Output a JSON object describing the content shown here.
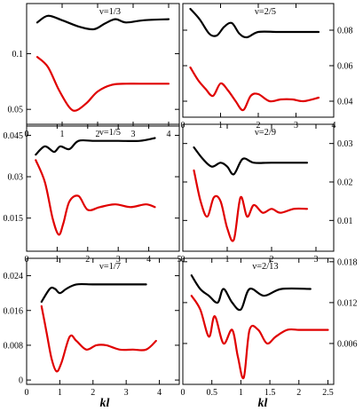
{
  "figure": {
    "xlabel": "kl"
  },
  "colors": {
    "upper": "#000000",
    "lower": "#e00000"
  },
  "chart_data": [
    {
      "type": "line",
      "title": "ν=1/3",
      "xlim": [
        0,
        4.3
      ],
      "ylim": [
        0.035,
        0.145
      ],
      "xticks": [
        0,
        1,
        2,
        3,
        4
      ],
      "yticks": [
        0.05,
        0.1
      ],
      "ytick_labels": [
        "0.05",
        "0.1"
      ],
      "y_axis_side": "left",
      "series": [
        {
          "color": "#000000",
          "x": [
            0.3,
            0.6,
            1.0,
            1.5,
            1.9,
            2.2,
            2.5,
            2.8,
            3.3,
            4.0
          ],
          "y": [
            0.128,
            0.134,
            0.13,
            0.124,
            0.122,
            0.127,
            0.131,
            0.128,
            0.13,
            0.131
          ]
        },
        {
          "color": "#e00000",
          "x": [
            0.3,
            0.6,
            0.9,
            1.2,
            1.4,
            1.7,
            2.0,
            2.4,
            2.8,
            3.2,
            4.0
          ],
          "y": [
            0.097,
            0.088,
            0.068,
            0.052,
            0.049,
            0.056,
            0.066,
            0.072,
            0.073,
            0.073,
            0.073
          ]
        }
      ]
    },
    {
      "type": "line",
      "title": "ν=2/5",
      "xlim": [
        0,
        4
      ],
      "ylim": [
        0.031,
        0.095
      ],
      "xticks": [
        0,
        1,
        2,
        3,
        4
      ],
      "yticks": [
        0.04,
        0.06,
        0.08
      ],
      "ytick_labels": [
        "0.04",
        "0.06",
        "0.08"
      ],
      "y_axis_side": "right",
      "series": [
        {
          "color": "#000000",
          "x": [
            0.2,
            0.45,
            0.7,
            0.9,
            1.1,
            1.3,
            1.5,
            1.7,
            2.0,
            2.5,
            3.0,
            3.6
          ],
          "y": [
            0.092,
            0.086,
            0.078,
            0.077,
            0.082,
            0.084,
            0.078,
            0.076,
            0.079,
            0.079,
            0.079,
            0.079
          ]
        },
        {
          "color": "#e00000",
          "x": [
            0.2,
            0.4,
            0.6,
            0.8,
            1.0,
            1.2,
            1.4,
            1.6,
            1.8,
            2.0,
            2.3,
            2.6,
            2.9,
            3.2,
            3.6
          ],
          "y": [
            0.059,
            0.052,
            0.047,
            0.043,
            0.05,
            0.046,
            0.04,
            0.035,
            0.043,
            0.044,
            0.04,
            0.041,
            0.041,
            0.04,
            0.042
          ]
        }
      ]
    },
    {
      "type": "line",
      "title": "ν=1/5",
      "xlim": [
        0,
        5
      ],
      "ylim": [
        0.003,
        0.049
      ],
      "xticks": [
        0,
        1,
        2,
        3,
        4,
        5
      ],
      "yticks": [
        0.015,
        0.03,
        0.045
      ],
      "ytick_labels": [
        "0.015",
        "0.03",
        "0.045"
      ],
      "y_axis_side": "left",
      "series": [
        {
          "color": "#000000",
          "x": [
            0.3,
            0.6,
            0.9,
            1.1,
            1.4,
            1.7,
            2.2,
            3.0,
            3.7,
            4.2
          ],
          "y": [
            0.038,
            0.041,
            0.039,
            0.041,
            0.04,
            0.043,
            0.043,
            0.043,
            0.043,
            0.044
          ]
        },
        {
          "color": "#e00000",
          "x": [
            0.3,
            0.6,
            0.85,
            1.05,
            1.2,
            1.4,
            1.7,
            2.0,
            2.4,
            2.9,
            3.4,
            3.9,
            4.2
          ],
          "y": [
            0.036,
            0.028,
            0.015,
            0.009,
            0.013,
            0.021,
            0.023,
            0.018,
            0.019,
            0.02,
            0.019,
            0.02,
            0.019
          ]
        }
      ]
    },
    {
      "type": "line",
      "title": "ν=2/9",
      "xlim": [
        0,
        3.4
      ],
      "ylim": [
        0.002,
        0.035
      ],
      "xticks": [
        0,
        1,
        2,
        3
      ],
      "yticks": [
        0.01,
        0.02,
        0.03
      ],
      "ytick_labels": [
        "0.01",
        "0.02",
        "0.03"
      ],
      "y_axis_side": "right",
      "series": [
        {
          "color": "#000000",
          "x": [
            0.25,
            0.45,
            0.65,
            0.85,
            1.0,
            1.15,
            1.35,
            1.6,
            2.0,
            2.8
          ],
          "y": [
            0.029,
            0.026,
            0.024,
            0.025,
            0.024,
            0.022,
            0.026,
            0.025,
            0.025,
            0.025
          ]
        },
        {
          "color": "#e00000",
          "x": [
            0.25,
            0.4,
            0.55,
            0.7,
            0.85,
            1.0,
            1.15,
            1.3,
            1.45,
            1.6,
            1.8,
            2.0,
            2.2,
            2.5,
            2.8
          ],
          "y": [
            0.023,
            0.015,
            0.011,
            0.016,
            0.015,
            0.008,
            0.005,
            0.016,
            0.011,
            0.014,
            0.012,
            0.013,
            0.012,
            0.013,
            0.013
          ]
        }
      ]
    },
    {
      "type": "line",
      "title": "ν=1/7",
      "xlim": [
        0,
        4.6
      ],
      "ylim": [
        -0.001,
        0.028
      ],
      "xticks": [
        0,
        1,
        2,
        3,
        4
      ],
      "yticks": [
        0,
        0.008,
        0.016,
        0.024
      ],
      "ytick_labels": [
        "0",
        "0.008",
        "0.016",
        "0.024"
      ],
      "y_axis_side": "left",
      "series": [
        {
          "color": "#000000",
          "x": [
            0.45,
            0.7,
            0.85,
            1.0,
            1.2,
            1.5,
            2.0,
            2.6,
            3.6
          ],
          "y": [
            0.018,
            0.021,
            0.021,
            0.02,
            0.021,
            0.022,
            0.022,
            0.022,
            0.022
          ]
        },
        {
          "color": "#e00000",
          "x": [
            0.45,
            0.6,
            0.75,
            0.9,
            1.05,
            1.3,
            1.5,
            1.8,
            2.1,
            2.4,
            2.8,
            3.2,
            3.6,
            3.9
          ],
          "y": [
            0.017,
            0.011,
            0.005,
            0.002,
            0.004,
            0.01,
            0.009,
            0.007,
            0.008,
            0.008,
            0.007,
            0.007,
            0.007,
            0.009
          ]
        }
      ]
    },
    {
      "type": "line",
      "title": "ν=2/13",
      "xlim": [
        0,
        2.6
      ],
      "ylim": [
        0,
        0.0185
      ],
      "xticks": [
        0,
        0.5,
        1,
        1.5,
        2,
        2.5
      ],
      "yticks": [
        0.006,
        0.012,
        0.018
      ],
      "ytick_labels": [
        "0.006",
        "0.012",
        "0.018"
      ],
      "y_axis_side": "right",
      "series": [
        {
          "color": "#000000",
          "x": [
            0.15,
            0.3,
            0.45,
            0.6,
            0.7,
            0.85,
            1.0,
            1.15,
            1.4,
            1.7,
            2.2
          ],
          "y": [
            0.016,
            0.014,
            0.013,
            0.012,
            0.014,
            0.012,
            0.011,
            0.014,
            0.013,
            0.014,
            0.014
          ]
        },
        {
          "color": "#e00000",
          "x": [
            0.15,
            0.3,
            0.45,
            0.55,
            0.7,
            0.85,
            0.95,
            1.05,
            1.15,
            1.3,
            1.45,
            1.6,
            1.8,
            2.0,
            2.2,
            2.5
          ],
          "y": [
            0.013,
            0.011,
            0.007,
            0.01,
            0.006,
            0.008,
            0.004,
            0.001,
            0.008,
            0.008,
            0.006,
            0.007,
            0.008,
            0.008,
            0.008,
            0.008
          ]
        }
      ]
    }
  ]
}
